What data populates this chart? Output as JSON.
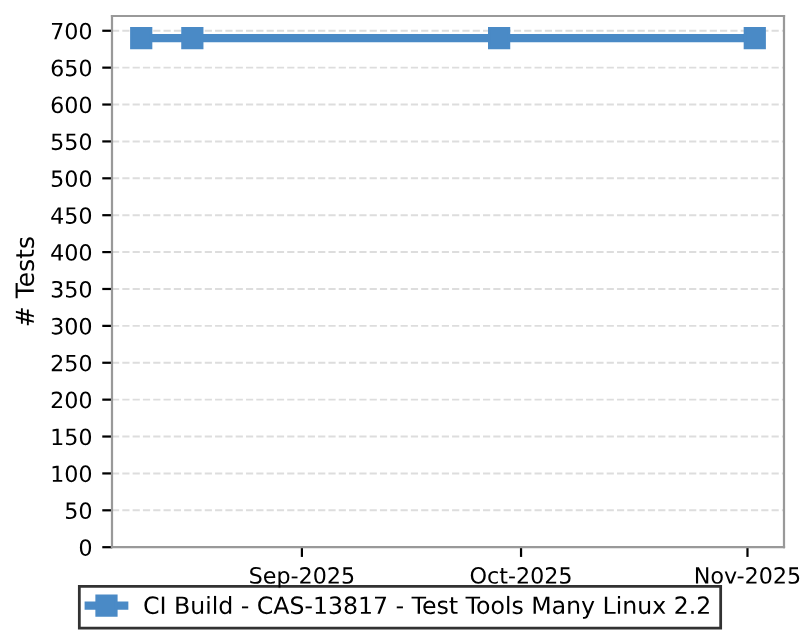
{
  "chart_data": {
    "type": "line",
    "ylabel": "# Tests",
    "x": [
      "2025-08-10",
      "2025-08-17",
      "2025-09-28",
      "2025-11-02"
    ],
    "series": [
      {
        "name": "CI Build - CAS-13817 - Test Tools Many Linux 2.2",
        "color": "#4a8ac6",
        "values": [
          690,
          690,
          690,
          690
        ]
      }
    ],
    "xlim": [
      "2025-08-06",
      "2025-11-06"
    ],
    "xticks": [
      {
        "value": "2025-09-01",
        "label": "Sep-2025"
      },
      {
        "value": "2025-10-01",
        "label": "Oct-2025"
      },
      {
        "value": "2025-11-01",
        "label": "Nov-2025"
      }
    ],
    "ylim": [
      0,
      720
    ],
    "yticks": [
      0,
      50,
      100,
      150,
      200,
      250,
      300,
      350,
      400,
      450,
      500,
      550,
      600,
      650,
      700
    ],
    "grid": "y",
    "legend": "bottom",
    "marker": "square",
    "line_style": "solid"
  }
}
